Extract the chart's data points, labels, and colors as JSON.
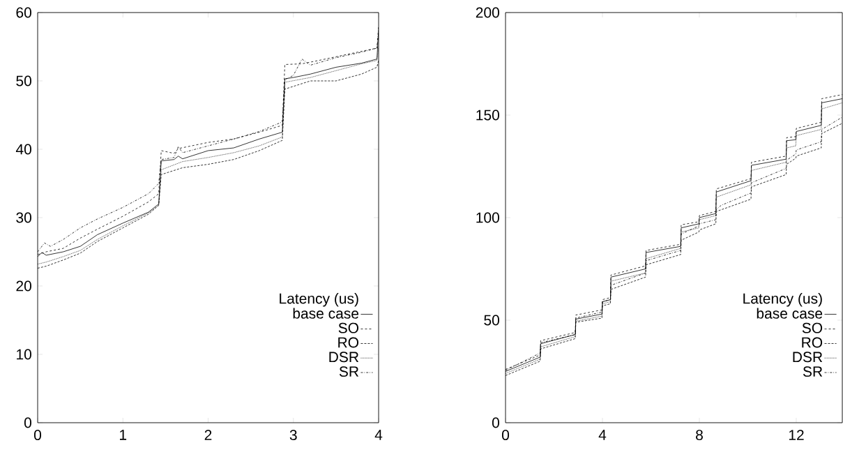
{
  "chart_data": [
    {
      "type": "line",
      "legend_title": "Latency (us)",
      "legend": "bottom right",
      "xlim": [
        0,
        4
      ],
      "ylim": [
        0,
        60
      ],
      "xticks": [
        0,
        1,
        2,
        3,
        4
      ],
      "yticks": [
        0,
        10,
        20,
        30,
        40,
        50,
        60
      ],
      "series": [
        {
          "name": "base case",
          "color": "#000000",
          "line_style": "solid",
          "x": [
            0,
            0.05,
            0.1,
            0.3,
            0.5,
            0.7,
            1.0,
            1.3,
            1.4,
            1.42,
            1.45,
            1.6,
            1.65,
            1.7,
            2.0,
            2.3,
            2.6,
            2.87,
            2.9,
            3.0,
            3.2,
            3.5,
            3.8,
            3.98,
            4.0
          ],
          "values": [
            24.3,
            24.9,
            24.5,
            25,
            25.8,
            27.5,
            29.2,
            30.8,
            31.8,
            32,
            38.3,
            38.5,
            39,
            38.6,
            39.8,
            40.2,
            41.5,
            42.5,
            50.3,
            50.5,
            51,
            52,
            52.6,
            53.2,
            57.5
          ]
        },
        {
          "name": "SO",
          "color": "#000000",
          "line_style": "dashed",
          "x": [
            0,
            0.1,
            0.3,
            0.5,
            0.7,
            1.0,
            1.3,
            1.42,
            1.45,
            1.6,
            1.65,
            2.0,
            2.3,
            2.6,
            2.87,
            2.9,
            3.1,
            3.3,
            3.6,
            3.98,
            4.0
          ],
          "values": [
            24.6,
            25,
            25.5,
            27,
            28.3,
            30.2,
            32.3,
            33.5,
            39.8,
            39.4,
            40.1,
            41,
            41.5,
            42.5,
            43.5,
            52.4,
            52.5,
            53,
            53.8,
            54.8,
            57
          ]
        },
        {
          "name": "RO",
          "color": "#000000",
          "line_style": "densely dashed",
          "x": [
            0,
            0.1,
            0.3,
            0.5,
            0.7,
            1.0,
            1.3,
            1.42,
            1.45,
            1.7,
            2.0,
            2.3,
            2.6,
            2.87,
            2.9,
            3.0,
            3.2,
            3.5,
            3.8,
            3.98,
            4.0
          ],
          "values": [
            22.6,
            22.9,
            23.8,
            24.8,
            26.5,
            28.5,
            30.5,
            31.8,
            36.3,
            37.3,
            37.8,
            38.5,
            39.8,
            41.3,
            48.8,
            49.2,
            50,
            50,
            51,
            52,
            53
          ]
        },
        {
          "name": "DSR",
          "color": "#000000",
          "line_style": "dotted",
          "x": [
            0,
            0.1,
            0.3,
            0.5,
            0.7,
            1.0,
            1.3,
            1.42,
            1.45,
            1.7,
            2.0,
            2.3,
            2.6,
            2.87,
            2.9,
            3.2,
            3.5,
            3.8,
            3.98,
            4.0
          ],
          "values": [
            23.2,
            23.5,
            24.3,
            25.2,
            26.8,
            28.8,
            30.7,
            31.8,
            37,
            38.2,
            38.8,
            39.5,
            40.5,
            41.8,
            49.8,
            50.5,
            51.5,
            52.5,
            53,
            55
          ]
        },
        {
          "name": "SR",
          "color": "#000000",
          "line_style": "dashdot",
          "x": [
            0,
            0.08,
            0.15,
            0.3,
            0.5,
            0.7,
            1.0,
            1.3,
            1.42,
            1.45,
            1.6,
            1.65,
            1.7,
            2.0,
            2.3,
            2.6,
            2.87,
            2.9,
            3.0,
            3.1,
            3.2,
            3.5,
            3.8,
            3.98,
            4.0
          ],
          "values": [
            25,
            26.3,
            25.8,
            26.8,
            28.5,
            29.8,
            31.5,
            33.5,
            35,
            38.5,
            38.8,
            40.4,
            39.5,
            40.5,
            41.5,
            42.6,
            44,
            50.2,
            50.8,
            53.2,
            52.3,
            53.4,
            54.2,
            54.8,
            58
          ]
        }
      ]
    },
    {
      "type": "line",
      "legend_title": "Latency (us)",
      "legend": "bottom right",
      "xlim": [
        0,
        13.9
      ],
      "ylim": [
        0,
        200
      ],
      "xticks": [
        0,
        4,
        8,
        12
      ],
      "yticks": [
        0,
        50,
        100,
        150,
        200
      ],
      "series": [
        {
          "name": "base case",
          "color": "#000000",
          "line_style": "solid",
          "x": [
            0,
            1.43,
            1.45,
            2.88,
            2.9,
            3.98,
            4.0,
            4.33,
            4.35,
            5.78,
            5.8,
            7.23,
            7.25,
            7.98,
            8.0,
            8.68,
            8.7,
            10.13,
            10.15,
            11.58,
            11.6,
            11.98,
            12.0,
            13.03,
            13.05,
            13.9
          ],
          "values": [
            25,
            32,
            38.5,
            43,
            50.5,
            53,
            59,
            60,
            71,
            75,
            83,
            86,
            95,
            97,
            100,
            102,
            112.5,
            118,
            125.5,
            128.5,
            137.5,
            138,
            142,
            145,
            156,
            158
          ]
        },
        {
          "name": "SO",
          "color": "#000000",
          "line_style": "dashed",
          "x": [
            0,
            1.43,
            1.45,
            2.88,
            2.9,
            3.98,
            4.0,
            4.33,
            4.35,
            5.78,
            5.8,
            7.23,
            7.25,
            7.98,
            8.0,
            8.68,
            8.7,
            10.13,
            10.15,
            11.58,
            11.6,
            11.98,
            12.0,
            13.03,
            13.05,
            13.9
          ],
          "values": [
            26,
            33,
            40,
            44,
            52.5,
            55,
            60,
            61,
            72,
            76.5,
            84,
            87,
            96.5,
            98,
            101,
            103,
            114,
            119,
            127,
            130,
            139,
            139.5,
            143.5,
            146.5,
            158,
            160
          ]
        },
        {
          "name": "RO",
          "color": "#000000",
          "line_style": "densely dashed",
          "x": [
            0,
            1.43,
            1.45,
            2.88,
            2.9,
            3.98,
            4.0,
            4.33,
            4.35,
            5.78,
            5.8,
            7.23,
            7.25,
            7.98,
            8.0,
            8.68,
            8.7,
            10.13,
            10.15,
            11.58,
            11.6,
            11.98,
            12.0,
            13.03,
            13.05,
            13.9
          ],
          "values": [
            23,
            30,
            36,
            41,
            49,
            51,
            57,
            58,
            65,
            71,
            77,
            82,
            89,
            93,
            94,
            97,
            103,
            109,
            115,
            121,
            126,
            129,
            130,
            134,
            141,
            146
          ]
        },
        {
          "name": "DSR",
          "color": "#000000",
          "line_style": "dotted",
          "x": [
            0,
            1.43,
            1.45,
            2.88,
            2.9,
            3.98,
            4.0,
            4.33,
            4.35,
            5.78,
            5.8,
            7.23,
            7.25,
            7.98,
            8.0,
            8.68,
            8.7,
            10.13,
            10.15,
            11.58,
            11.6,
            11.98,
            12.0,
            13.03,
            13.05,
            13.9
          ],
          "values": [
            24,
            31,
            37,
            42,
            49.5,
            52,
            58,
            59,
            69,
            73,
            80,
            85,
            93,
            95,
            99,
            101,
            110,
            116,
            123,
            127,
            134,
            135,
            140,
            143,
            153,
            156
          ]
        },
        {
          "name": "SR",
          "color": "#000000",
          "line_style": "dashdot",
          "x": [
            0,
            1.43,
            1.45,
            2.88,
            2.9,
            3.98,
            4.0,
            4.33,
            4.35,
            5.78,
            5.8,
            7.23,
            7.25,
            7.98,
            8.0,
            8.68,
            8.7,
            8.9,
            10.13,
            10.15,
            11.58,
            11.6,
            11.98,
            12.0,
            13.03,
            13.05,
            13.9
          ],
          "values": [
            25.5,
            34,
            39,
            43,
            51,
            54,
            59,
            60,
            67,
            73,
            79,
            84,
            92,
            96,
            97,
            99,
            104,
            106,
            112,
            117,
            124,
            128,
            131,
            133,
            137,
            143,
            149
          ]
        }
      ]
    }
  ]
}
